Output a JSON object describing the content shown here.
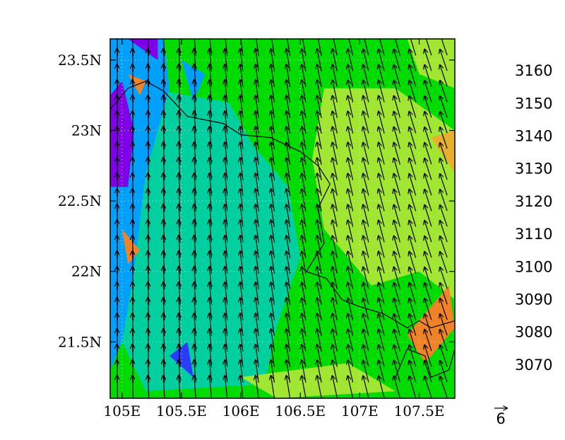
{
  "map": {
    "lon_range": [
      104.9,
      107.8
    ],
    "lat_range": [
      21.1,
      23.65
    ],
    "lon_ticks": [
      {
        "value": 105.0,
        "label": "105E"
      },
      {
        "value": 105.5,
        "label": "105.5E"
      },
      {
        "value": 106.0,
        "label": "106E"
      },
      {
        "value": 106.5,
        "label": "106.5E"
      },
      {
        "value": 107.0,
        "label": "107E"
      },
      {
        "value": 107.5,
        "label": "107.5E"
      }
    ],
    "lat_ticks": [
      {
        "value": 23.5,
        "label": "23.5N"
      },
      {
        "value": 23.0,
        "label": "23N"
      },
      {
        "value": 22.5,
        "label": "22.5N"
      },
      {
        "value": 22.0,
        "label": "22N"
      },
      {
        "value": 21.5,
        "label": "21.5N"
      }
    ],
    "background_level": 3115,
    "regions": [
      {
        "level": 3105,
        "lonlat": [
          [
            105.2,
            23.3
          ],
          [
            105.9,
            23.2
          ],
          [
            106.1,
            22.9
          ],
          [
            106.4,
            22.6
          ],
          [
            106.5,
            22.1
          ],
          [
            106.3,
            21.6
          ],
          [
            106.2,
            21.2
          ],
          [
            105.2,
            21.15
          ],
          [
            105.0,
            21.5
          ],
          [
            105.0,
            22.5
          ]
        ]
      },
      {
        "level": 3125,
        "lonlat": [
          [
            106.7,
            23.3
          ],
          [
            107.3,
            23.3
          ],
          [
            107.8,
            23.0
          ],
          [
            107.8,
            21.8
          ],
          [
            107.5,
            22.0
          ],
          [
            107.1,
            21.9
          ],
          [
            106.7,
            22.3
          ],
          [
            106.6,
            22.8
          ]
        ]
      },
      {
        "level": 3125,
        "lonlat": [
          [
            106.0,
            21.25
          ],
          [
            106.9,
            21.35
          ],
          [
            107.3,
            21.15
          ],
          [
            106.3,
            21.1
          ]
        ]
      },
      {
        "level": 3125,
        "lonlat": [
          [
            107.4,
            23.65
          ],
          [
            107.8,
            23.65
          ],
          [
            107.8,
            23.3
          ],
          [
            107.5,
            23.4
          ]
        ]
      },
      {
        "level": 3095,
        "lonlat": [
          [
            104.9,
            23.65
          ],
          [
            105.35,
            23.65
          ],
          [
            105.4,
            23.3
          ],
          [
            105.2,
            22.7
          ],
          [
            105.1,
            22.0
          ],
          [
            105.0,
            21.5
          ],
          [
            104.9,
            21.3
          ]
        ]
      },
      {
        "level": 3075,
        "lonlat": [
          [
            104.9,
            23.25
          ],
          [
            105.0,
            23.35
          ],
          [
            105.1,
            23.0
          ],
          [
            105.05,
            22.6
          ],
          [
            104.9,
            22.6
          ]
        ]
      },
      {
        "level": 3075,
        "lonlat": [
          [
            105.05,
            23.65
          ],
          [
            105.3,
            23.65
          ],
          [
            105.3,
            23.5
          ]
        ]
      },
      {
        "level": 3145,
        "lonlat": [
          [
            105.05,
            23.4
          ],
          [
            105.2,
            23.35
          ],
          [
            105.15,
            23.25
          ]
        ]
      },
      {
        "level": 3145,
        "lonlat": [
          [
            105.0,
            22.3
          ],
          [
            105.15,
            22.15
          ],
          [
            105.05,
            22.05
          ]
        ]
      },
      {
        "level": 3145,
        "lonlat": [
          [
            107.4,
            21.55
          ],
          [
            107.75,
            21.9
          ],
          [
            107.8,
            21.6
          ],
          [
            107.55,
            21.35
          ]
        ]
      },
      {
        "level": 3135,
        "lonlat": [
          [
            107.6,
            22.95
          ],
          [
            107.8,
            23.0
          ],
          [
            107.8,
            22.7
          ]
        ]
      },
      {
        "level": 3085,
        "lonlat": [
          [
            105.4,
            21.4
          ],
          [
            105.55,
            21.5
          ],
          [
            105.6,
            21.25
          ]
        ]
      },
      {
        "level": 3095,
        "lonlat": [
          [
            105.5,
            23.5
          ],
          [
            105.7,
            23.4
          ],
          [
            105.6,
            23.2
          ]
        ]
      }
    ],
    "boundary_lonlat": [
      [
        104.9,
        23.15
      ],
      [
        105.05,
        23.3
      ],
      [
        105.2,
        23.35
      ],
      [
        105.35,
        23.28
      ],
      [
        105.55,
        23.1
      ],
      [
        105.85,
        23.05
      ],
      [
        106.0,
        22.97
      ],
      [
        106.25,
        22.95
      ],
      [
        106.5,
        22.85
      ],
      [
        106.65,
        22.75
      ],
      [
        106.75,
        22.62
      ],
      [
        106.65,
        22.45
      ],
      [
        106.7,
        22.2
      ],
      [
        106.55,
        22.0
      ],
      [
        106.72,
        21.95
      ],
      [
        106.85,
        21.8
      ],
      [
        107.0,
        21.75
      ],
      [
        107.2,
        21.7
      ],
      [
        107.4,
        21.6
      ],
      [
        107.5,
        21.65
      ],
      [
        107.6,
        21.6
      ],
      [
        107.8,
        21.65
      ]
    ],
    "coast_lonlat": [
      [
        107.3,
        21.25
      ],
      [
        107.4,
        21.45
      ],
      [
        107.55,
        21.4
      ],
      [
        107.6,
        21.25
      ],
      [
        107.75,
        21.3
      ],
      [
        107.8,
        21.45
      ]
    ],
    "wind_vector_description": "northward winds, tilted north-west in the east, from the south in the west"
  },
  "colorbar": {
    "levels": [
      {
        "color": "#a000c8"
      },
      {
        "color": "#8000e8",
        "label": "3070"
      },
      {
        "color": "#2c3cff",
        "label": "3080"
      },
      {
        "color": "#00a0ff",
        "label": "3090"
      },
      {
        "color": "#00d0a0",
        "label": "3100"
      },
      {
        "color": "#00dc00",
        "label": "3110"
      },
      {
        "color": "#a0e632",
        "label": "3120"
      },
      {
        "color": "#e6af2d",
        "label": "3130"
      },
      {
        "color": "#f08228",
        "label": "3140"
      },
      {
        "color": "#fa3c3c",
        "label": "3150"
      },
      {
        "color": "#f00082",
        "label": "3160"
      }
    ]
  },
  "reference_vector": {
    "label": "6"
  }
}
